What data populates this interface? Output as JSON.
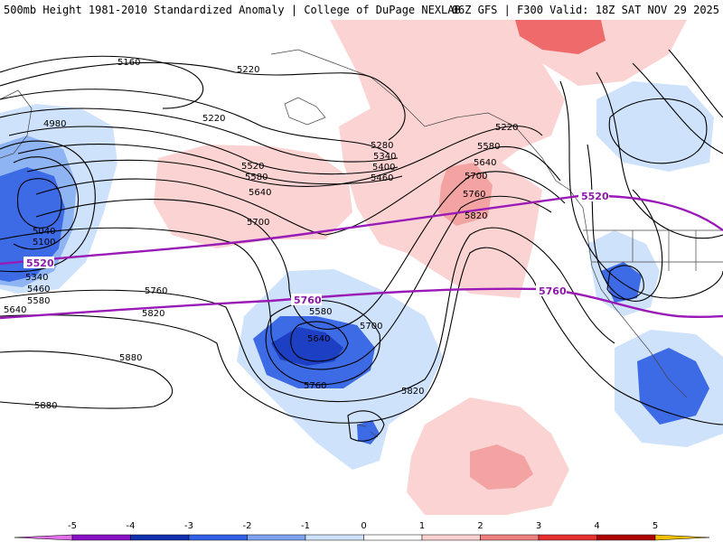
{
  "header": {
    "title_left": "500mb Height 1981-2010 Standardized Anomaly | College of DuPage NEXLAB",
    "title_right": "06Z GFS | F300 Valid: 18Z SAT NOV 29 2025"
  },
  "contour_labels": [
    {
      "id": "c5160",
      "text": "5160"
    },
    {
      "id": "c5220a",
      "text": "5220"
    },
    {
      "id": "c5220b",
      "text": "5220"
    },
    {
      "id": "c5220c",
      "text": "5220"
    },
    {
      "id": "c4980",
      "text": "4980"
    },
    {
      "id": "c5280",
      "text": "5280"
    },
    {
      "id": "c5340a",
      "text": "5340"
    },
    {
      "id": "c5400",
      "text": "5400"
    },
    {
      "id": "c5460a",
      "text": "5460"
    },
    {
      "id": "c5580a",
      "text": "5580"
    },
    {
      "id": "c5640a",
      "text": "5640"
    },
    {
      "id": "c5700a",
      "text": "5700"
    },
    {
      "id": "c5760a",
      "text": "5760"
    },
    {
      "id": "c5820a",
      "text": "5820"
    },
    {
      "id": "c5520a",
      "text": "5520"
    },
    {
      "id": "c5580b",
      "text": "5580"
    },
    {
      "id": "c5640b",
      "text": "5640"
    },
    {
      "id": "c5700b",
      "text": "5700"
    },
    {
      "id": "c5040",
      "text": "5040"
    },
    {
      "id": "c5100",
      "text": "5100"
    },
    {
      "id": "c5340b",
      "text": "5340"
    },
    {
      "id": "c5460b",
      "text": "5460"
    },
    {
      "id": "c5580c",
      "text": "5580"
    },
    {
      "id": "c5640c",
      "text": "5640"
    },
    {
      "id": "c5760b",
      "text": "5760"
    },
    {
      "id": "c5820b",
      "text": "5820"
    },
    {
      "id": "c5880a",
      "text": "5880"
    },
    {
      "id": "c5880b",
      "text": "5880"
    },
    {
      "id": "c5580d",
      "text": "5580"
    },
    {
      "id": "c5640d",
      "text": "5640"
    },
    {
      "id": "c5700c",
      "text": "5700"
    },
    {
      "id": "c5760c",
      "text": "5760"
    },
    {
      "id": "c5820c",
      "text": "5820"
    }
  ],
  "climo_labels": [
    {
      "id": "p5520a",
      "text": "5520"
    },
    {
      "id": "p5760a",
      "text": "5760"
    },
    {
      "id": "p5520b",
      "text": "5520"
    },
    {
      "id": "p5760b",
      "text": "5760"
    }
  ],
  "legend": {
    "ticks": [
      "-5",
      "-4",
      "-3",
      "-2",
      "-1",
      "0",
      "1",
      "2",
      "3",
      "4",
      "5"
    ],
    "colors": [
      "#e070e8",
      "#8a10c8",
      "#1030b0",
      "#3060e8",
      "#7ea2f0",
      "#cfe2fb",
      "#ffffff",
      "#fbd0d0",
      "#f08080",
      "#e83030",
      "#b00000",
      "#e07000",
      "#f0c000"
    ]
  },
  "map_colors": {
    "positive_light": "#fbd3d3",
    "positive_mid": "#f4a3a3",
    "positive_strong": "#ef6b6b",
    "negative_light": "#cfe2fb",
    "negative_mid": "#8fb4f3",
    "negative_strong": "#3d6be6",
    "negative_deep": "#1c3fc4",
    "climo_line": "#9a1ab8"
  }
}
